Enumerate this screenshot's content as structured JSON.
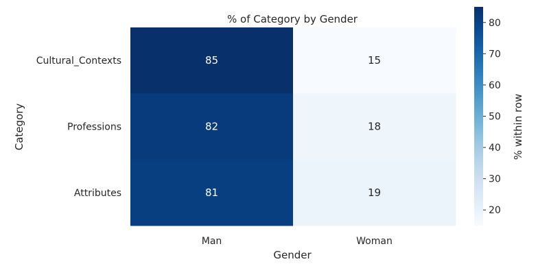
{
  "chart_data": {
    "type": "heatmap",
    "title": "% of Category by Gender",
    "xlabel": "Gender",
    "ylabel": "Category",
    "x_categories": [
      "Man",
      "Woman"
    ],
    "y_categories": [
      "Cultural_Contexts",
      "Professions",
      "Attributes"
    ],
    "values": [
      [
        85,
        15
      ],
      [
        82,
        18
      ],
      [
        81,
        19
      ]
    ],
    "colorbar": {
      "label": "% within row",
      "range": [
        15,
        85
      ],
      "ticks": [
        "20",
        "30",
        "40",
        "50",
        "60",
        "70",
        "80"
      ],
      "colormap": "Blues"
    },
    "grid": false,
    "annotations": true
  }
}
